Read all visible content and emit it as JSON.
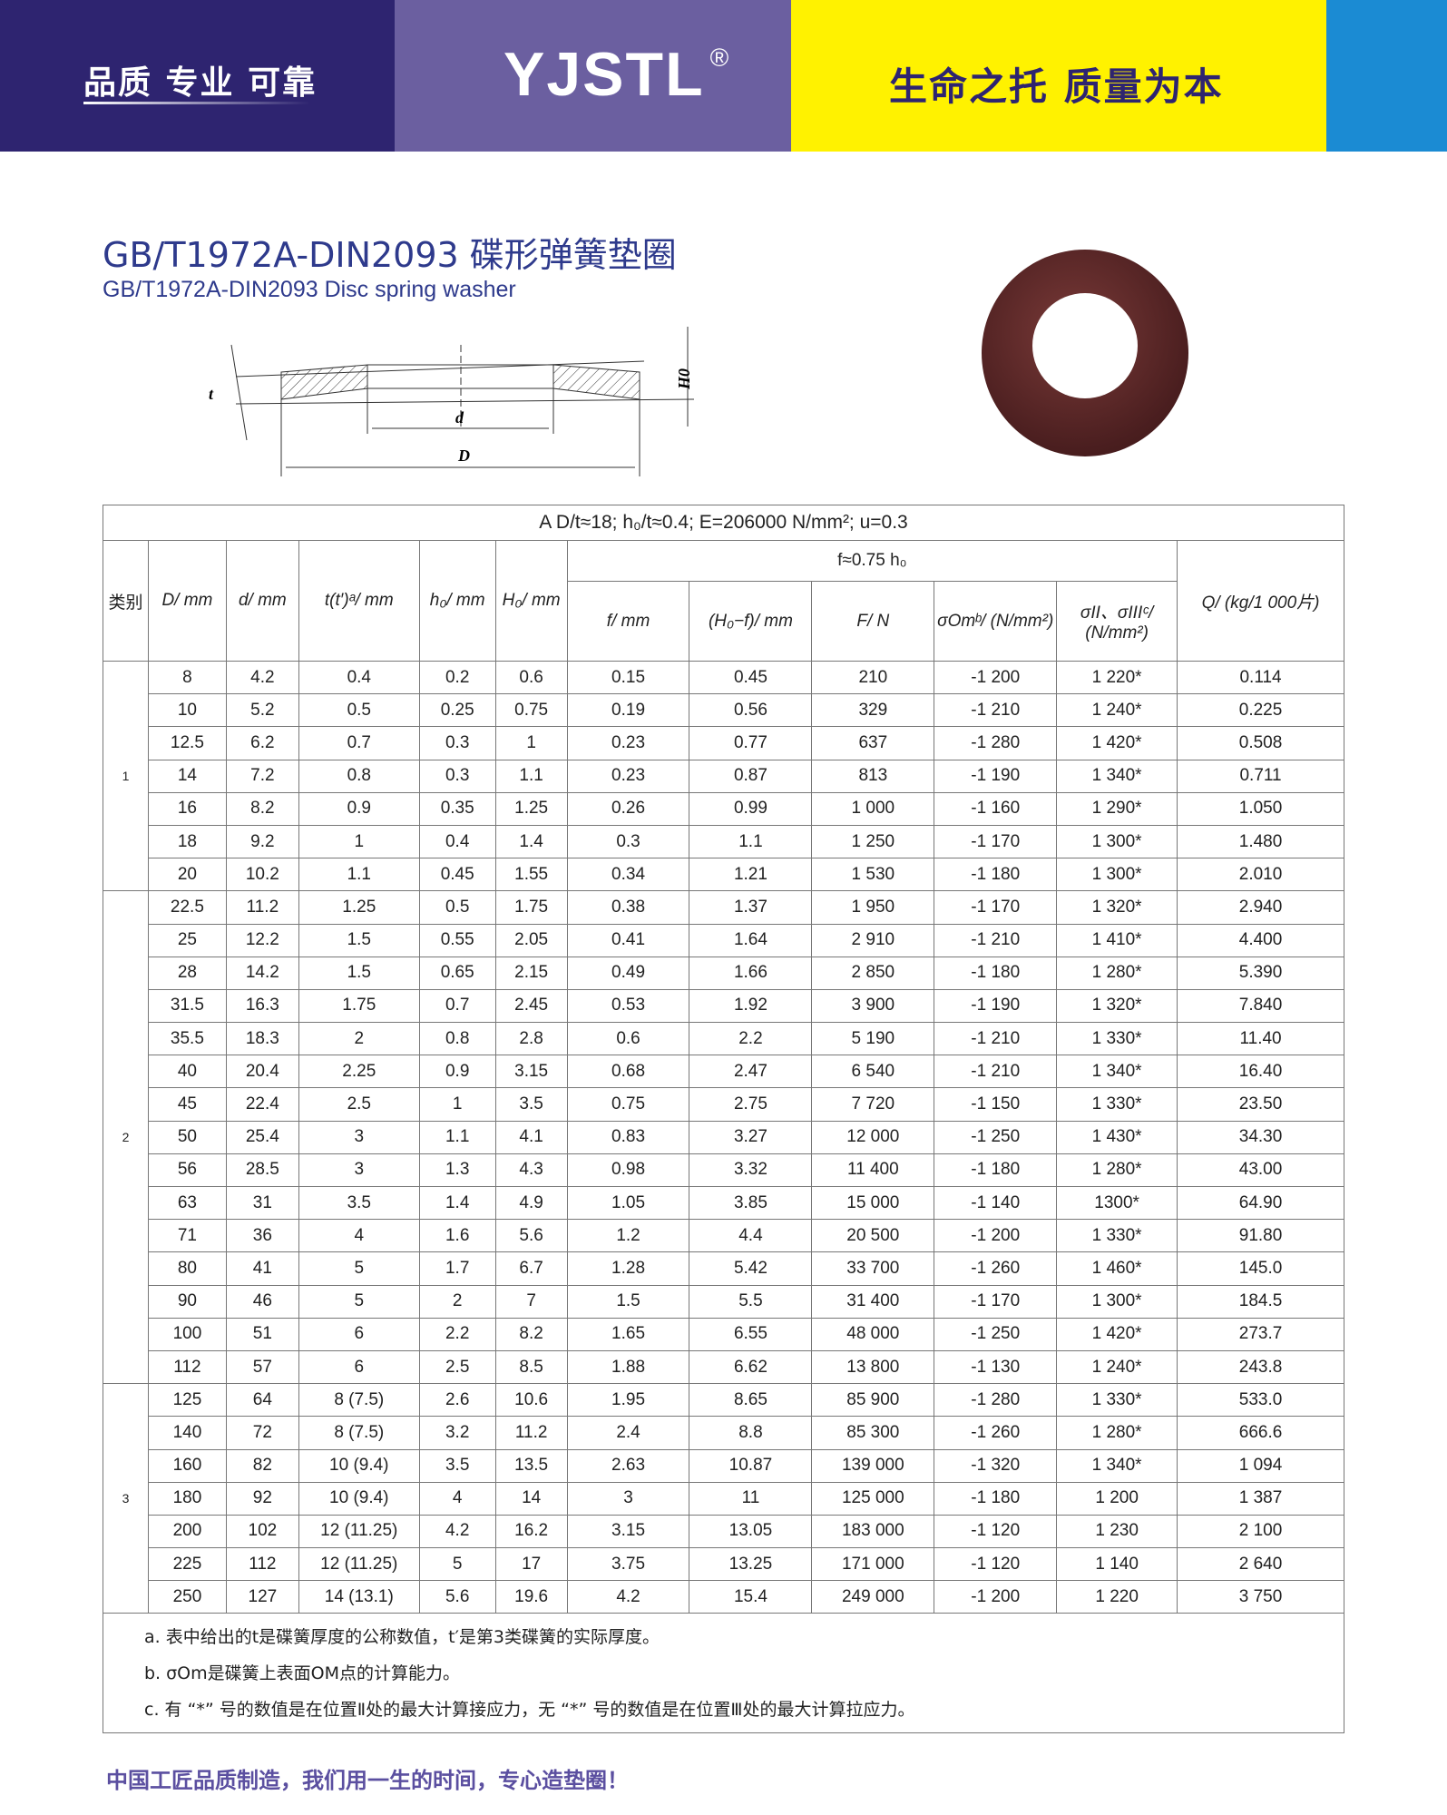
{
  "header": {
    "slogan_left": "品质 专业 可靠",
    "brand": "YJSTL",
    "registered": "®",
    "slogan_right": "生命之托 质量为本",
    "colors": {
      "navy": "#2e2470",
      "purple": "#6b5fa0",
      "yellow": "#fff200",
      "blue": "#1b8bd3"
    }
  },
  "title": {
    "cn": "GB/T1972A-DIN2093 碟形弹簧垫圈",
    "en": "GB/T1972A-DIN2093 Disc spring washer"
  },
  "diagram": {
    "labels": {
      "t": "t",
      "d": "d",
      "D": "D",
      "H0": "H0"
    }
  },
  "table": {
    "caption": "A D/t≈18; h₀/t≈0.4; E=206000  N/mm²; u=0.3",
    "group_header": "f≈0.75 h₀",
    "headers": [
      "类别",
      "D/ mm",
      "d/ mm",
      "t(t′)ᵃ/ mm",
      "h₀/ mm",
      "H₀/ mm",
      "f/ mm",
      "(H₀−f)/ mm",
      "F/ N",
      "σOmᵇ/ (N/mm²)",
      "σII、σIIIᶜ/ (N/mm²)",
      "Q/ (kg/1 000片)"
    ],
    "categories": [
      {
        "label": "1",
        "rows": 7
      },
      {
        "label": "2",
        "rows": 15
      },
      {
        "label": "3",
        "rows": 7
      }
    ],
    "rows": [
      [
        "8",
        "4.2",
        "0.4",
        "0.2",
        "0.6",
        "0.15",
        "0.45",
        "210",
        "-1 200",
        "1 220*",
        "0.114"
      ],
      [
        "10",
        "5.2",
        "0.5",
        "0.25",
        "0.75",
        "0.19",
        "0.56",
        "329",
        "-1 210",
        "1 240*",
        "0.225"
      ],
      [
        "12.5",
        "6.2",
        "0.7",
        "0.3",
        "1",
        "0.23",
        "0.77",
        "637",
        "-1 280",
        "1 420*",
        "0.508"
      ],
      [
        "14",
        "7.2",
        "0.8",
        "0.3",
        "1.1",
        "0.23",
        "0.87",
        "813",
        "-1 190",
        "1 340*",
        "0.711"
      ],
      [
        "16",
        "8.2",
        "0.9",
        "0.35",
        "1.25",
        "0.26",
        "0.99",
        "1 000",
        "-1 160",
        "1 290*",
        "1.050"
      ],
      [
        "18",
        "9.2",
        "1",
        "0.4",
        "1.4",
        "0.3",
        "1.1",
        "1 250",
        "-1 170",
        "1 300*",
        "1.480"
      ],
      [
        "20",
        "10.2",
        "1.1",
        "0.45",
        "1.55",
        "0.34",
        "1.21",
        "1 530",
        "-1 180",
        "1 300*",
        "2.010"
      ],
      [
        "22.5",
        "11.2",
        "1.25",
        "0.5",
        "1.75",
        "0.38",
        "1.37",
        "1 950",
        "-1 170",
        "1 320*",
        "2.940"
      ],
      [
        "25",
        "12.2",
        "1.5",
        "0.55",
        "2.05",
        "0.41",
        "1.64",
        "2 910",
        "-1 210",
        "1 410*",
        "4.400"
      ],
      [
        "28",
        "14.2",
        "1.5",
        "0.65",
        "2.15",
        "0.49",
        "1.66",
        "2 850",
        "-1 180",
        "1 280*",
        "5.390"
      ],
      [
        "31.5",
        "16.3",
        "1.75",
        "0.7",
        "2.45",
        "0.53",
        "1.92",
        "3 900",
        "-1 190",
        "1 320*",
        "7.840"
      ],
      [
        "35.5",
        "18.3",
        "2",
        "0.8",
        "2.8",
        "0.6",
        "2.2",
        "5 190",
        "-1 210",
        "1 330*",
        "11.40"
      ],
      [
        "40",
        "20.4",
        "2.25",
        "0.9",
        "3.15",
        "0.68",
        "2.47",
        "6 540",
        "-1 210",
        "1 340*",
        "16.40"
      ],
      [
        "45",
        "22.4",
        "2.5",
        "1",
        "3.5",
        "0.75",
        "2.75",
        "7 720",
        "-1 150",
        "1 330*",
        "23.50"
      ],
      [
        "50",
        "25.4",
        "3",
        "1.1",
        "4.1",
        "0.83",
        "3.27",
        "12 000",
        "-1 250",
        "1 430*",
        "34.30"
      ],
      [
        "56",
        "28.5",
        "3",
        "1.3",
        "4.3",
        "0.98",
        "3.32",
        "11 400",
        "-1 180",
        "1 280*",
        "43.00"
      ],
      [
        "63",
        "31",
        "3.5",
        "1.4",
        "4.9",
        "1.05",
        "3.85",
        "15 000",
        "-1 140",
        "1300*",
        "64.90"
      ],
      [
        "71",
        "36",
        "4",
        "1.6",
        "5.6",
        "1.2",
        "4.4",
        "20 500",
        "-1 200",
        "1 330*",
        "91.80"
      ],
      [
        "80",
        "41",
        "5",
        "1.7",
        "6.7",
        "1.28",
        "5.42",
        "33 700",
        "-1 260",
        "1 460*",
        "145.0"
      ],
      [
        "90",
        "46",
        "5",
        "2",
        "7",
        "1.5",
        "5.5",
        "31 400",
        "-1 170",
        "1 300*",
        "184.5"
      ],
      [
        "100",
        "51",
        "6",
        "2.2",
        "8.2",
        "1.65",
        "6.55",
        "48 000",
        "-1 250",
        "1 420*",
        "273.7"
      ],
      [
        "112",
        "57",
        "6",
        "2.5",
        "8.5",
        "1.88",
        "6.62",
        "13 800",
        "-1 130",
        "1 240*",
        "243.8"
      ],
      [
        "125",
        "64",
        "8 (7.5)",
        "2.6",
        "10.6",
        "1.95",
        "8.65",
        "85 900",
        "-1 280",
        "1 330*",
        "533.0"
      ],
      [
        "140",
        "72",
        "8 (7.5)",
        "3.2",
        "11.2",
        "2.4",
        "8.8",
        "85 300",
        "-1 260",
        "1 280*",
        "666.6"
      ],
      [
        "160",
        "82",
        "10 (9.4)",
        "3.5",
        "13.5",
        "2.63",
        "10.87",
        "139 000",
        "-1 320",
        "1 340*",
        "1 094"
      ],
      [
        "180",
        "92",
        "10 (9.4)",
        "4",
        "14",
        "3",
        "11",
        "125 000",
        "-1 180",
        "1 200",
        "1 387"
      ],
      [
        "200",
        "102",
        "12 (11.25)",
        "4.2",
        "16.2",
        "3.15",
        "13.05",
        "183 000",
        "-1 120",
        "1 230",
        "2 100"
      ],
      [
        "225",
        "112",
        "12 (11.25)",
        "5",
        "17",
        "3.75",
        "13.25",
        "171 000",
        "-1 120",
        "1 140",
        "2 640"
      ],
      [
        "250",
        "127",
        "14 (13.1)",
        "5.6",
        "19.6",
        "4.2",
        "15.4",
        "249 000",
        "-1 200",
        "1 220",
        "3 750"
      ]
    ]
  },
  "notes": [
    "a.  表中给出的t是碟簧厚度的公称数值，t′是第3类碟簧的实际厚度。",
    "b.  σOm是碟簧上表面OM点的计算能力。",
    "c. 有 “*” 号的数值是在位置Ⅱ处的最大计算接应力，无 “*” 号的数值是在位置Ⅲ处的最大计算拉应力。"
  ],
  "footer": "中国工匠品质制造，我们用一生的时间，专心造垫圈！"
}
